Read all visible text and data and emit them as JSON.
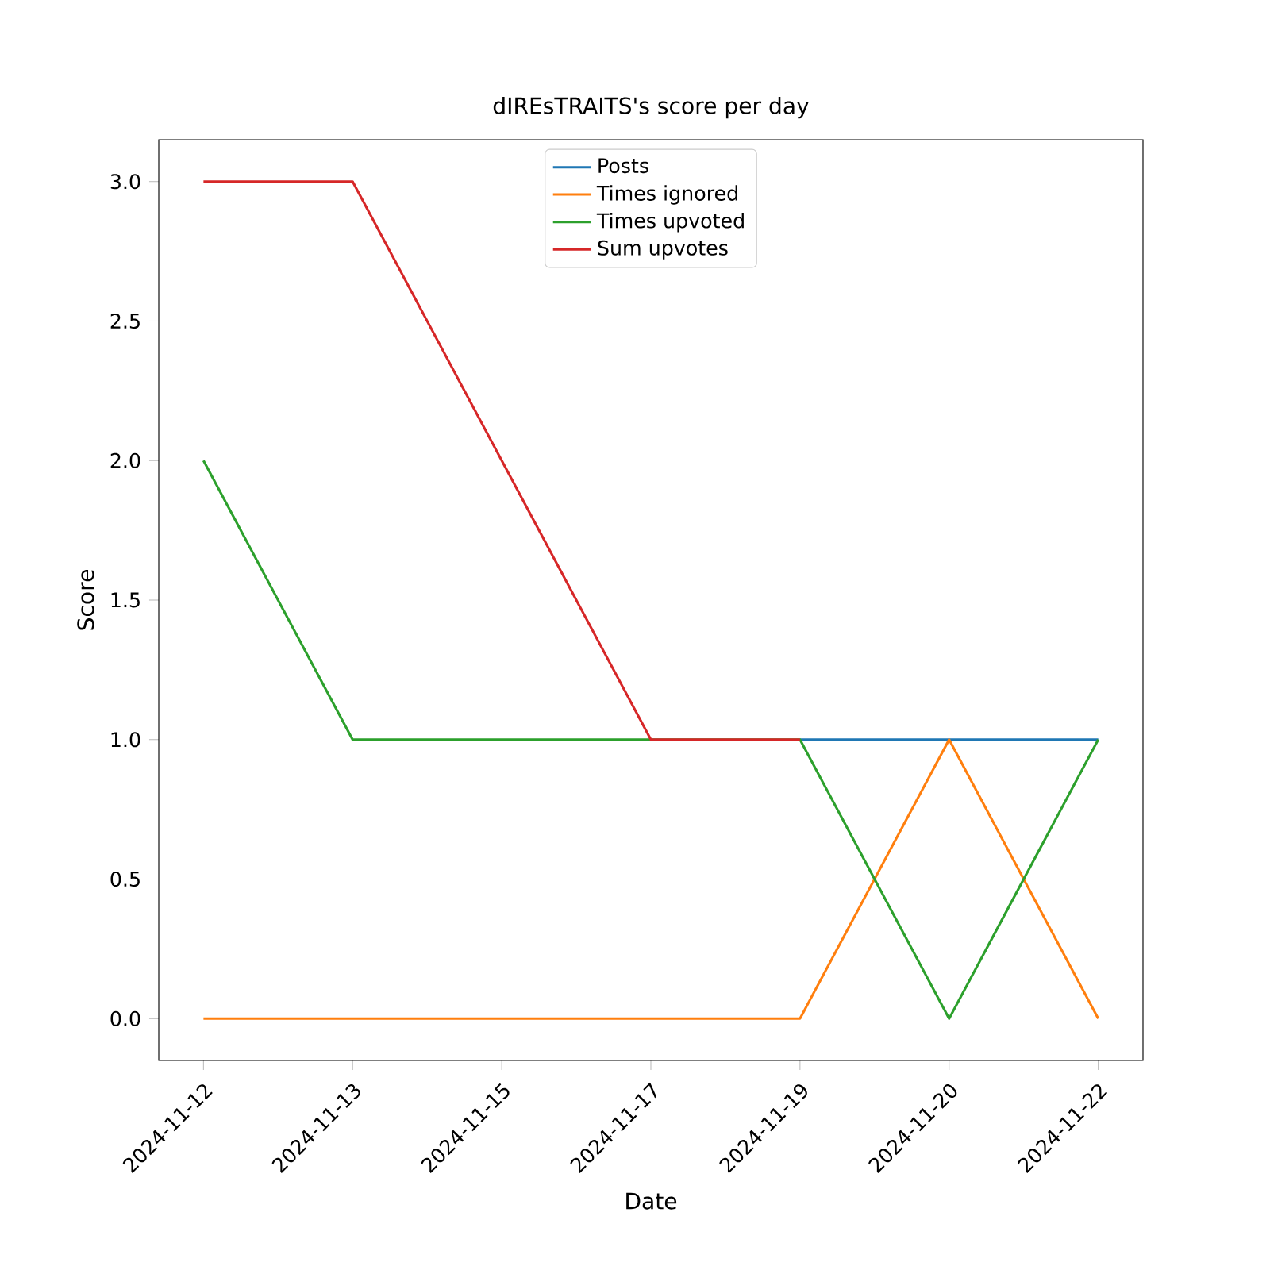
{
  "chart_data": {
    "type": "line",
    "title": "dIREsTRAITS's score per day",
    "xlabel": "Date",
    "ylabel": "Score",
    "categories": [
      "2024-11-12",
      "2024-11-13",
      "2024-11-15",
      "2024-11-17",
      "2024-11-19",
      "2024-11-20",
      "2024-11-22"
    ],
    "series": [
      {
        "name": "Posts",
        "color": "#1f77b4",
        "values": [
          null,
          null,
          null,
          null,
          1,
          1,
          1
        ]
      },
      {
        "name": "Times ignored",
        "color": "#ff7f0e",
        "values": [
          0,
          0,
          0,
          0,
          0,
          1,
          0
        ]
      },
      {
        "name": "Times upvoted",
        "color": "#2ca02c",
        "values": [
          2,
          1,
          1,
          1,
          1,
          0,
          1
        ]
      },
      {
        "name": "Sum upvotes",
        "color": "#d62728",
        "values": [
          3,
          3,
          2,
          1,
          1,
          null,
          null
        ]
      }
    ],
    "ylim": [
      -0.15,
      3.15
    ],
    "yticks": [
      {
        "value": 0,
        "label": "0.0"
      },
      {
        "value": 0.5,
        "label": "0.5"
      },
      {
        "value": 1,
        "label": "1.0"
      },
      {
        "value": 1.5,
        "label": "1.5"
      },
      {
        "value": 2,
        "label": "2.0"
      },
      {
        "value": 2.5,
        "label": "2.5"
      },
      {
        "value": 3,
        "label": "3.0"
      }
    ],
    "legend": "top",
    "line_style": "solid",
    "marker": "none"
  }
}
